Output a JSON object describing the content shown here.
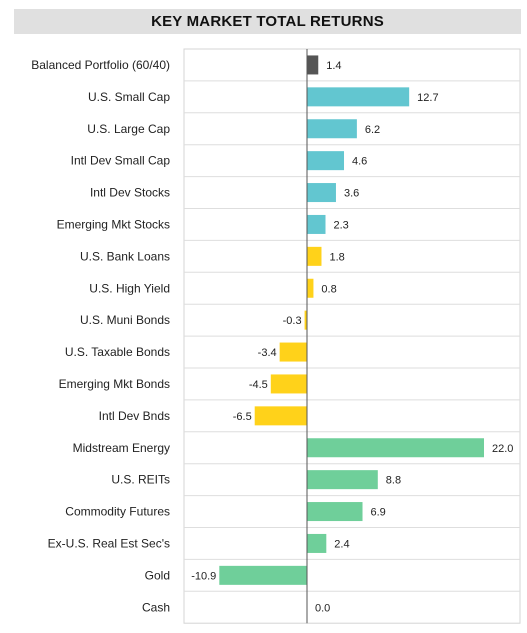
{
  "chart_data": {
    "type": "bar",
    "orientation": "horizontal",
    "title": "KEY MARKET TOTAL RETURNS",
    "categories": [
      "Balanced Portfolio (60/40)",
      "U.S. Small Cap",
      "U.S. Large Cap",
      "Intl Dev Small Cap",
      "Intl Dev Stocks",
      "Emerging Mkt Stocks",
      "U.S. Bank Loans",
      "U.S. High Yield",
      "U.S. Muni Bonds",
      "U.S. Taxable Bonds",
      "Emerging Mkt Bonds",
      "Intl Dev Bnds",
      "Midstream Energy",
      "U.S. REITs",
      "Commodity Futures",
      "Ex-U.S. Real Est Sec's",
      "Gold",
      "Cash"
    ],
    "values": [
      1.4,
      12.7,
      6.2,
      4.6,
      3.6,
      2.3,
      1.8,
      0.8,
      -0.3,
      -3.4,
      -4.5,
      -6.5,
      22.0,
      8.8,
      6.9,
      2.4,
      -10.9,
      0.0
    ],
    "value_labels": [
      "1.4",
      "12.7",
      "6.2",
      "4.6",
      "3.6",
      "2.3",
      "1.8",
      "0.8",
      "-0.3",
      "-3.4",
      "-4.5",
      "-6.5",
      "22.0",
      "8.8",
      "6.9",
      "2.4",
      "-10.9",
      "0.0"
    ],
    "groups": [
      "balanced",
      "equity",
      "equity",
      "equity",
      "equity",
      "equity",
      "fixed",
      "fixed",
      "fixed",
      "fixed",
      "fixed",
      "fixed",
      "real",
      "real",
      "real",
      "real",
      "real",
      "real"
    ],
    "colors": {
      "balanced": "#555555",
      "equity": "#62c6d0",
      "fixed": "#ffd21a",
      "real": "#6fcf9a"
    },
    "xlim": [
      -12.5,
      26
    ],
    "grid": "horizontal row separators",
    "legend": "none"
  }
}
